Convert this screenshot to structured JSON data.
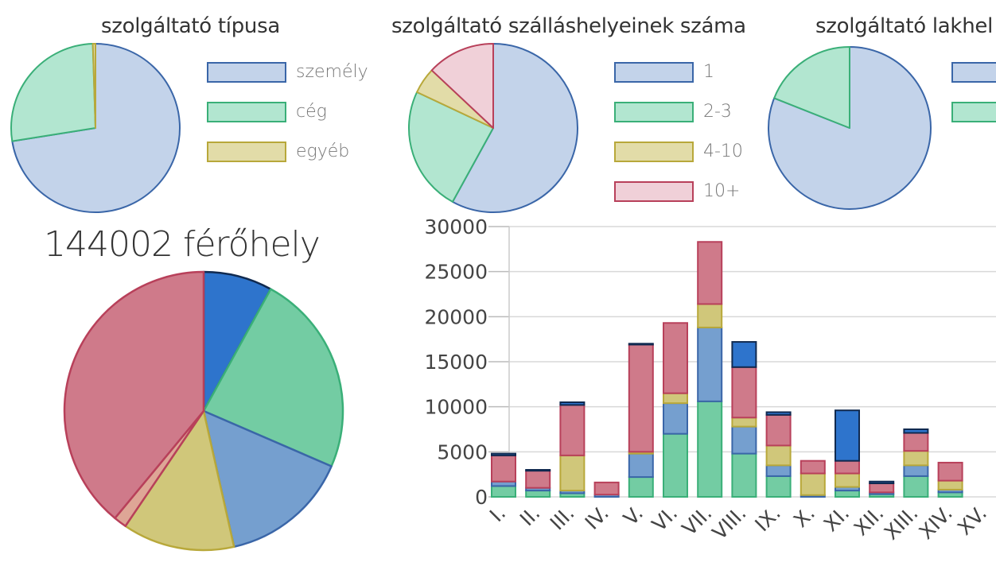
{
  "charts": {
    "provider_type": {
      "title": "szolgáltató típusa",
      "legend": [
        {
          "label": "személy",
          "fill": "#c3d3ea",
          "stroke": "#3a66a8"
        },
        {
          "label": "cég",
          "fill": "#b2e6d0",
          "stroke": "#3aaf78"
        },
        {
          "label": "egyéb",
          "fill": "#e2dca8",
          "stroke": "#b8a83a"
        }
      ]
    },
    "accommodation_count": {
      "title": "szolgáltató szálláshelyeinek száma",
      "legend": [
        {
          "label": "1",
          "fill": "#c3d3ea",
          "stroke": "#3a66a8"
        },
        {
          "label": "2-3",
          "fill": "#b2e6d0",
          "stroke": "#3aaf78"
        },
        {
          "label": "4-10",
          "fill": "#e2dca8",
          "stroke": "#b8a83a"
        },
        {
          "label": "10+",
          "fill": "#f0d0d8",
          "stroke": "#b8405a"
        }
      ]
    },
    "residence": {
      "title": "szolgáltató lakhel",
      "legend": [
        {
          "label": "",
          "fill": "#c3d3ea",
          "stroke": "#3a66a8"
        },
        {
          "label": "",
          "fill": "#b2e6d0",
          "stroke": "#3aaf78"
        }
      ]
    },
    "capacity": {
      "title": "144002 férőhely"
    }
  },
  "chart_data": [
    {
      "type": "pie",
      "title": "szolgáltató típusa",
      "labels": [
        "személy",
        "cég",
        "egyéb"
      ],
      "values": [
        72.5,
        27.0,
        0.5
      ],
      "colors": [
        "#c3d3ea",
        "#b2e6d0",
        "#e2dca8"
      ],
      "strokes": [
        "#3a66a8",
        "#3aaf78",
        "#b8a83a"
      ]
    },
    {
      "type": "pie",
      "title": "szolgáltató szálláshelyeinek száma",
      "labels": [
        "1",
        "2-3",
        "4-10",
        "10+"
      ],
      "values": [
        58,
        24,
        5,
        13
      ],
      "colors": [
        "#c3d3ea",
        "#b2e6d0",
        "#e2dca8",
        "#f0d0d8"
      ],
      "strokes": [
        "#3a66a8",
        "#3aaf78",
        "#b8a83a",
        "#b8405a"
      ]
    },
    {
      "type": "pie",
      "title": "szolgáltató lakhel",
      "labels": [
        "",
        ""
      ],
      "values": [
        81,
        19
      ],
      "colors": [
        "#c3d3ea",
        "#b2e6d0"
      ],
      "strokes": [
        "#3a66a8",
        "#3aaf78"
      ]
    },
    {
      "type": "pie",
      "title": "144002 férőhely",
      "values": [
        8,
        23.5,
        15,
        13,
        1.5,
        39
      ],
      "colors": [
        "#2e74cc",
        "#73cca3",
        "#759fcf",
        "#d0c77a",
        "#dea696",
        "#cf7a8a"
      ],
      "strokes": [
        "#102a50",
        "#3aaf78",
        "#3a66a8",
        "#b8a83a",
        "#b8405a",
        "#b8405a"
      ]
    },
    {
      "type": "bar",
      "stacked": true,
      "categories": [
        "I.",
        "II.",
        "III.",
        "IV.",
        "V.",
        "VI.",
        "VII.",
        "VIII.",
        "IX.",
        "X.",
        "XI.",
        "XII.",
        "XIII.",
        "XIV.",
        "XV."
      ],
      "ylim": [
        0,
        30000
      ],
      "yticks": [
        0,
        5000,
        10000,
        15000,
        20000,
        25000,
        30000
      ],
      "grid": true,
      "series": [
        {
          "values": [
            1200,
            700,
            400,
            0,
            2200,
            7000,
            10600,
            4800,
            2300,
            0,
            700,
            300,
            2300,
            500,
            0
          ],
          "fill": "#73cca3",
          "stroke": "#3aaf78"
        },
        {
          "values": [
            500,
            300,
            300,
            250,
            2600,
            3400,
            8200,
            3000,
            1200,
            200,
            400,
            200,
            1200,
            300,
            0
          ],
          "fill": "#759fcf",
          "stroke": "#3a66a8"
        },
        {
          "values": [
            0,
            0,
            3900,
            0,
            200,
            1100,
            2600,
            1000,
            2200,
            2400,
            1500,
            0,
            1600,
            1000,
            0
          ],
          "fill": "#d0c77a",
          "stroke": "#b8a83a"
        },
        {
          "values": [
            2900,
            1900,
            5600,
            1350,
            11900,
            7800,
            6900,
            5600,
            3400,
            1400,
            1400,
            1000,
            2000,
            2000,
            0
          ],
          "fill": "#cf7a8a",
          "stroke": "#b8405a"
        },
        {
          "values": [
            200,
            100,
            300,
            0,
            100,
            0,
            0,
            2800,
            300,
            0,
            5600,
            200,
            400,
            0,
            0
          ],
          "fill": "#2e74cc",
          "stroke": "#102a50"
        }
      ]
    }
  ]
}
